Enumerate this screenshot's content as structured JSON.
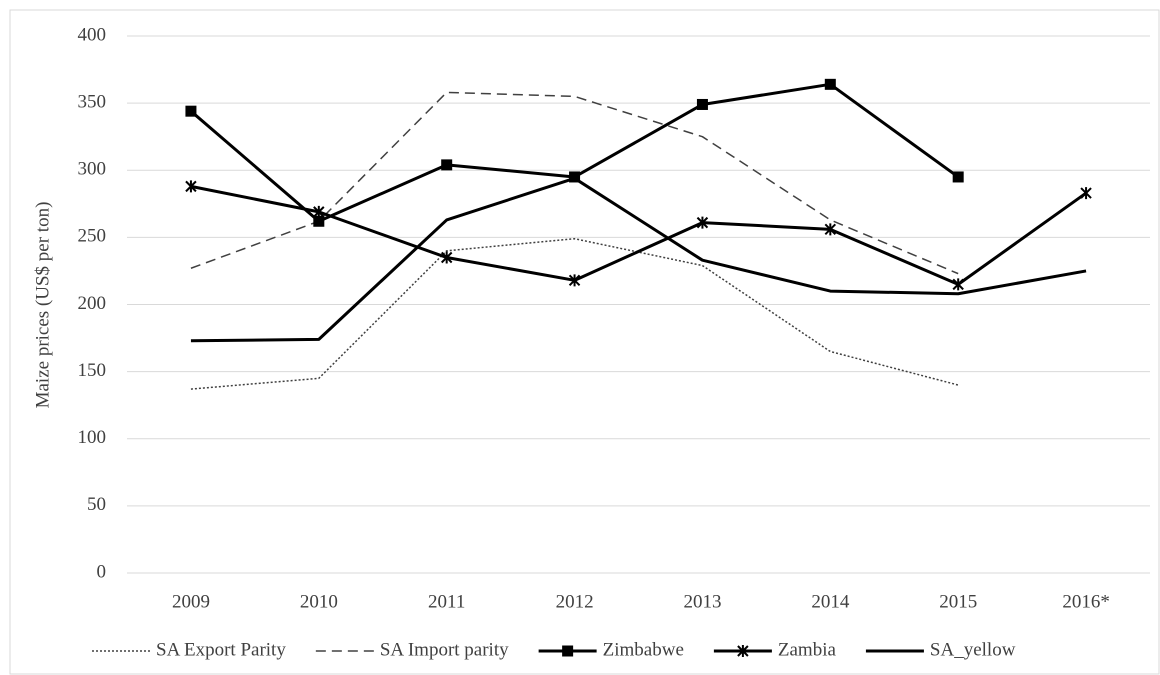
{
  "chart_data": {
    "type": "line",
    "y_label": "Maize prices (US$ per ton)",
    "categories": [
      "2009",
      "2010",
      "2011",
      "2012",
      "2013",
      "2014",
      "2015",
      "2016*"
    ],
    "ylim": [
      0,
      400
    ],
    "yticks": [
      0,
      50,
      100,
      150,
      200,
      250,
      300,
      350,
      400
    ],
    "grid": true,
    "legend": "bottom",
    "series": [
      {
        "name": "SA Export Parity",
        "color": "#404040",
        "line_style": "dotted",
        "marker": "none",
        "values": [
          137,
          145,
          240,
          249,
          229,
          165,
          140,
          null
        ]
      },
      {
        "name": "SA Import parity",
        "color": "#404040",
        "line_style": "dashed",
        "marker": "none",
        "values": [
          227,
          262,
          358,
          355,
          325,
          263,
          223,
          null
        ]
      },
      {
        "name": "Zimbabwe",
        "color": "#000000",
        "line_style": "solid",
        "marker": "square",
        "values": [
          344,
          262,
          304,
          295,
          349,
          364,
          295,
          null
        ]
      },
      {
        "name": "Zambia",
        "color": "#000000",
        "line_style": "solid",
        "marker": "star",
        "values": [
          288,
          269,
          235,
          218,
          261,
          256,
          215,
          283
        ]
      },
      {
        "name": "SA_yellow",
        "color": "#000000",
        "line_style": "solid",
        "marker": "none",
        "values": [
          173,
          174,
          263,
          294,
          233,
          210,
          208,
          225
        ]
      }
    ]
  }
}
